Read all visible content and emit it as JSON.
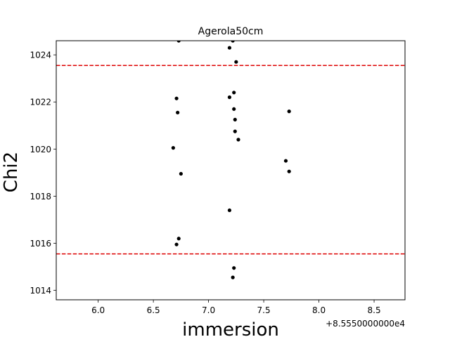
{
  "chart_data": {
    "type": "scatter",
    "title": "Agerola50cm",
    "xlabel": "immersion",
    "ylabel": "Chi2",
    "x_offset_label": "+8.5550000000e4",
    "xlim": [
      5.62,
      8.78
    ],
    "ylim": [
      1013.6,
      1024.6
    ],
    "xticks": [
      6.0,
      6.5,
      7.0,
      7.5,
      8.0,
      8.5
    ],
    "xtick_labels": [
      "6.0",
      "6.5",
      "7.0",
      "7.5",
      "8.0",
      "8.5"
    ],
    "yticks": [
      1014,
      1016,
      1018,
      1020,
      1022,
      1024
    ],
    "ytick_labels": [
      "1014",
      "1016",
      "1018",
      "1020",
      "1022",
      "1024"
    ],
    "grid": false,
    "point_color": "#000000",
    "hlines": [
      {
        "y": 1023.55,
        "color": "#dd0000",
        "style": "dashed"
      },
      {
        "y": 1015.55,
        "color": "#dd0000",
        "style": "dashed"
      }
    ],
    "points": [
      {
        "x": 6.73,
        "y": 1024.6
      },
      {
        "x": 7.22,
        "y": 1024.6
      },
      {
        "x": 7.19,
        "y": 1024.3
      },
      {
        "x": 7.25,
        "y": 1023.7
      },
      {
        "x": 7.23,
        "y": 1022.4
      },
      {
        "x": 6.71,
        "y": 1022.15
      },
      {
        "x": 7.19,
        "y": 1022.2
      },
      {
        "x": 7.23,
        "y": 1021.7
      },
      {
        "x": 7.73,
        "y": 1021.6
      },
      {
        "x": 6.72,
        "y": 1021.55
      },
      {
        "x": 7.24,
        "y": 1021.25
      },
      {
        "x": 7.24,
        "y": 1020.75
      },
      {
        "x": 7.27,
        "y": 1020.4
      },
      {
        "x": 6.68,
        "y": 1020.05
      },
      {
        "x": 7.7,
        "y": 1019.5
      },
      {
        "x": 7.73,
        "y": 1019.05
      },
      {
        "x": 6.75,
        "y": 1018.95
      },
      {
        "x": 7.19,
        "y": 1017.4
      },
      {
        "x": 6.73,
        "y": 1016.2
      },
      {
        "x": 6.71,
        "y": 1015.95
      },
      {
        "x": 7.23,
        "y": 1014.95
      },
      {
        "x": 7.22,
        "y": 1014.55
      }
    ]
  }
}
